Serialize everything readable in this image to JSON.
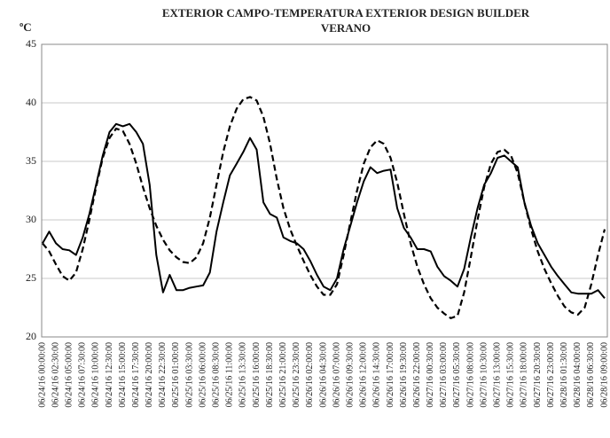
{
  "chart_data": {
    "type": "line",
    "title": "EXTERIOR CAMPO-TEMPERATURA EXTERIOR DESIGN BUILDER",
    "subtitle": "VERANO",
    "y_label": "ºC",
    "categories": [
      "06/24/16 00:00:00",
      null,
      "06/24/16 02:30:00",
      null,
      "06/24/16 05:00:00",
      null,
      "06/24/16 07:30:00",
      null,
      "06/24/16 10:00:00",
      null,
      "06/24/16 12:30:00",
      null,
      "06/24/16 15:00:00",
      null,
      "06/24/16 17:30:00",
      null,
      "06/24/16 20:00:00",
      null,
      "06/24/16 22:30:00",
      null,
      "06/25/16 01:00:00",
      null,
      "06/25/16 03:30:00",
      null,
      "06/25/16 06:00:00",
      null,
      "06/25/16 08:30:00",
      null,
      "06/25/16 11:00:00",
      null,
      "06/25/16 13:30:00",
      null,
      "06/25/16 16:00:00",
      null,
      "06/25/16 18:30:00",
      null,
      "06/25/16 21:00:00",
      null,
      "06/25/16 23:30:00",
      null,
      "06/26/16 02:00:00",
      null,
      "06/26/16 04:30:00",
      null,
      "06/26/16 07:00:00",
      null,
      "06/26/16 09:30:00",
      null,
      "06/26/16 12:00:00",
      null,
      "06/26/16 14:30:00",
      null,
      "06/26/16 17:00:00",
      null,
      "06/26/16 19:30:00",
      null,
      "06/26/16 22:00:00",
      null,
      "06/27/16 00:30:00",
      null,
      "06/27/16 03:00:00",
      null,
      "06/27/16 05:30:00",
      null,
      "06/27/16 08:00:00",
      null,
      "06/27/16 10:30:00",
      null,
      "06/27/16 13:00:00",
      null,
      "06/27/16 15:30:00",
      null,
      "06/27/16 18:00:00",
      null,
      "06/27/16 20:30:00",
      null,
      "06/27/16 23:00:00",
      null,
      "06/28/16 01:30:00",
      null,
      "06/28/16 04:00:00",
      null,
      "06/28/16 06:30:00",
      null,
      "06/28/16 09:00:00"
    ],
    "series": [
      {
        "color": "#000000",
        "line_style": "solid",
        "values": [
          28,
          29,
          28,
          27.5,
          27.4,
          27,
          28.5,
          30.5,
          33,
          35.5,
          37.5,
          38.2,
          38,
          38.2,
          37.5,
          36.5,
          33,
          27,
          23.8,
          25.3,
          24,
          24,
          24.2,
          24.3,
          24.4,
          25.5,
          29,
          31.5,
          33.8,
          34.8,
          35.8,
          37,
          36,
          31.5,
          30.5,
          30.2,
          28.5,
          28.2,
          28,
          27.5,
          26.5,
          25.3,
          24.3,
          24,
          25,
          27.5,
          29.5,
          31.5,
          33.3,
          34.5,
          34,
          34.2,
          34.3,
          31,
          29.3,
          28.5,
          27.5,
          27.5,
          27.3,
          26,
          25.2,
          24.8,
          24.3,
          25.8,
          28.5,
          31,
          33,
          34,
          35.3,
          35.5,
          35,
          34.5,
          31.5,
          29.5,
          28,
          27,
          26,
          25.2,
          24.5,
          23.8,
          23.7,
          23.7,
          23.7,
          24,
          23.3
        ]
      },
      {
        "color": "#000000",
        "line_style": "dashed",
        "values": [
          28,
          27.3,
          26.2,
          25.2,
          24.8,
          25.5,
          27.5,
          30,
          32.8,
          35.3,
          37,
          37.8,
          37.6,
          36.5,
          34.8,
          32.8,
          31,
          29.5,
          28.3,
          27.4,
          26.8,
          26.4,
          26.3,
          26.8,
          28,
          30.2,
          33,
          35.8,
          38,
          39.5,
          40.3,
          40.5,
          40.2,
          38.8,
          36.5,
          33.5,
          31,
          29.2,
          27.8,
          26.5,
          25.3,
          24.3,
          23.6,
          23.6,
          24.5,
          27,
          29.8,
          32.5,
          34.8,
          36.2,
          36.8,
          36.5,
          35.3,
          33.2,
          30.5,
          28,
          26,
          24.5,
          23.3,
          22.5,
          22,
          21.6,
          21.8,
          23.8,
          26.8,
          30,
          32.8,
          34.8,
          35.8,
          36,
          35.5,
          34,
          31.5,
          29.2,
          27.3,
          25.8,
          24.6,
          23.5,
          22.6,
          22.1,
          21.9,
          22.5,
          24.5,
          27,
          29.2
        ]
      }
    ],
    "ylim": [
      20,
      45
    ],
    "yticks": [
      20,
      25,
      30,
      35,
      40,
      45
    ],
    "grid": true
  }
}
